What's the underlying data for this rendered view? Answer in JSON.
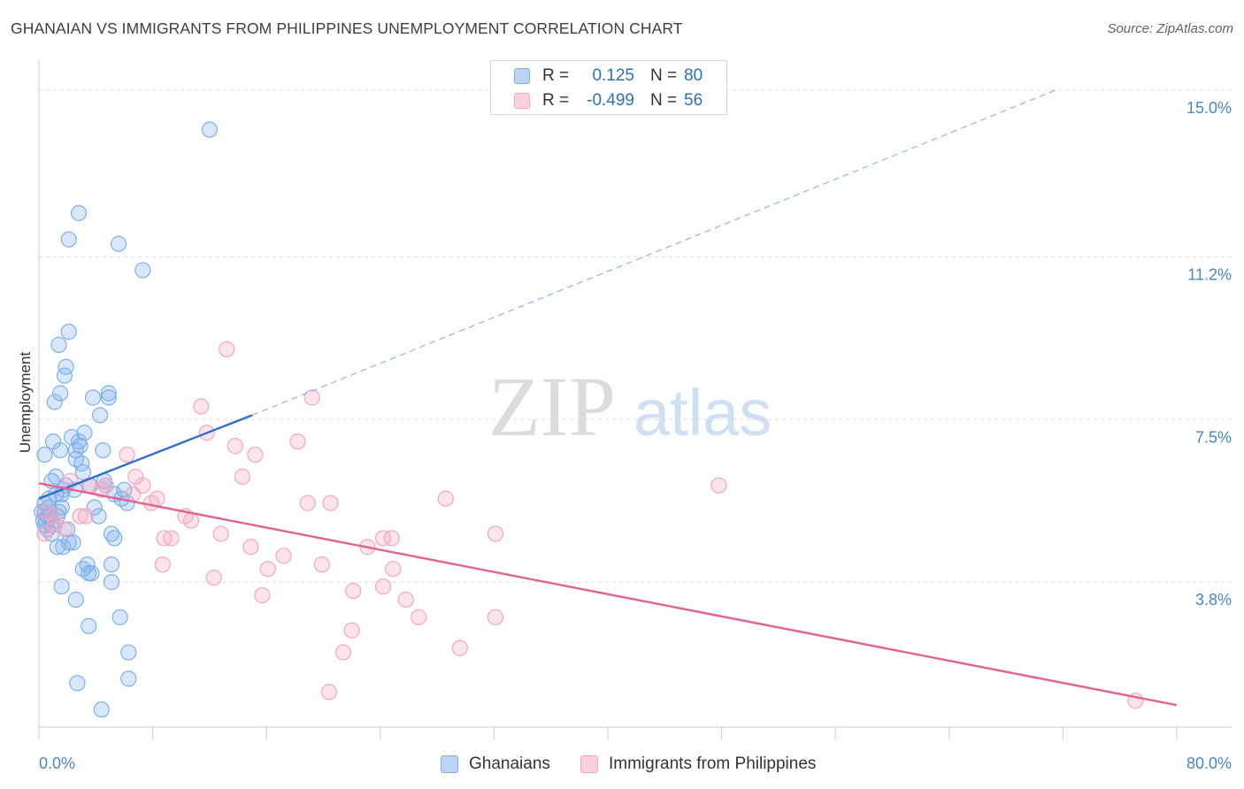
{
  "header": {
    "title": "GHANAIAN VS IMMIGRANTS FROM PHILIPPINES UNEMPLOYMENT CORRELATION CHART",
    "source": "Source: ZipAtlas.com"
  },
  "watermark": {
    "zip": "ZIP",
    "atlas": "atlas"
  },
  "legend": {
    "rows": [
      {
        "r_label": "R =",
        "r_value": "0.125",
        "n_label": "N =",
        "n_value": "80",
        "color": "#7fb0ea"
      },
      {
        "r_label": "R =",
        "r_value": "-0.499",
        "n_label": "N =",
        "n_value": "56",
        "color": "#f4a6bf"
      }
    ]
  },
  "bottom_legend": {
    "items": [
      {
        "label": "Ghanaians",
        "color": "#7fb0ea"
      },
      {
        "label": "Immigrants from Philippines",
        "color": "#f4a6bf"
      }
    ]
  },
  "chart_data": {
    "type": "scatter",
    "title": "GHANAIAN VS IMMIGRANTS FROM PHILIPPINES UNEMPLOYMENT CORRELATION CHART",
    "xlabel": "",
    "ylabel": "Unemployment",
    "xlim": [
      0,
      80
    ],
    "ylim": [
      0.5,
      15.6
    ],
    "x_tick_labels": [
      "0.0%",
      "80.0%"
    ],
    "y_ticks": [
      3.8,
      7.5,
      11.2,
      15.0
    ],
    "y_tick_labels": [
      "3.8%",
      "7.5%",
      "11.2%",
      "15.0%"
    ],
    "grid": true,
    "legend_position": "top-center",
    "series": [
      {
        "name": "Ghanaians",
        "color": "#7fb0ea",
        "line_color": "#2f6fcf",
        "trend": {
          "x0": 0,
          "y0": 5.7,
          "x1": 15.0,
          "y1": 7.6,
          "dash_to_x": 71.5,
          "dash_to_y": 15.0
        },
        "points": [
          [
            12.0,
            14.1
          ],
          [
            2.8,
            12.2
          ],
          [
            2.1,
            11.6
          ],
          [
            5.6,
            11.5
          ],
          [
            7.3,
            10.9
          ],
          [
            2.1,
            9.5
          ],
          [
            1.4,
            9.2
          ],
          [
            1.9,
            8.7
          ],
          [
            1.8,
            8.5
          ],
          [
            4.9,
            8.1
          ],
          [
            1.5,
            8.1
          ],
          [
            4.9,
            8.0
          ],
          [
            3.8,
            8.0
          ],
          [
            1.1,
            7.9
          ],
          [
            4.3,
            7.6
          ],
          [
            3.2,
            7.2
          ],
          [
            2.3,
            7.1
          ],
          [
            2.8,
            7.0
          ],
          [
            1.0,
            7.0
          ],
          [
            2.9,
            6.9
          ],
          [
            1.5,
            6.8
          ],
          [
            4.5,
            6.8
          ],
          [
            2.6,
            6.8
          ],
          [
            0.4,
            6.7
          ],
          [
            2.6,
            6.6
          ],
          [
            3.0,
            6.5
          ],
          [
            3.1,
            6.3
          ],
          [
            1.2,
            6.2
          ],
          [
            4.6,
            6.1
          ],
          [
            0.9,
            6.1
          ],
          [
            3.6,
            6.0
          ],
          [
            2.5,
            5.9
          ],
          [
            1.6,
            5.8
          ],
          [
            1.2,
            5.8
          ],
          [
            5.3,
            5.8
          ],
          [
            5.8,
            5.7
          ],
          [
            6.2,
            5.6
          ],
          [
            0.4,
            5.6
          ],
          [
            0.7,
            5.5
          ],
          [
            1.6,
            5.5
          ],
          [
            0.2,
            5.4
          ],
          [
            0.4,
            5.4
          ],
          [
            0.6,
            5.3
          ],
          [
            1.3,
            5.3
          ],
          [
            0.8,
            5.3
          ],
          [
            0.5,
            5.2
          ],
          [
            0.3,
            5.2
          ],
          [
            4.2,
            5.3
          ],
          [
            0.9,
            5.1
          ],
          [
            0.4,
            5.1
          ],
          [
            0.6,
            5.0
          ],
          [
            5.1,
            4.9
          ],
          [
            5.3,
            4.8
          ],
          [
            2.1,
            4.7
          ],
          [
            2.4,
            4.7
          ],
          [
            1.3,
            4.6
          ],
          [
            1.7,
            4.6
          ],
          [
            5.1,
            4.2
          ],
          [
            3.4,
            4.2
          ],
          [
            3.1,
            4.1
          ],
          [
            3.5,
            4.0
          ],
          [
            3.7,
            4.0
          ],
          [
            5.1,
            3.8
          ],
          [
            1.6,
            3.7
          ],
          [
            2.6,
            3.4
          ],
          [
            5.7,
            3.0
          ],
          [
            3.5,
            2.8
          ],
          [
            6.3,
            2.2
          ],
          [
            6.3,
            1.6
          ],
          [
            2.7,
            1.5
          ],
          [
            4.4,
            0.9
          ],
          [
            1.9,
            6.0
          ],
          [
            0.7,
            5.7
          ],
          [
            1.4,
            5.4
          ],
          [
            2.0,
            5.0
          ],
          [
            3.9,
            5.5
          ],
          [
            4.7,
            6.0
          ],
          [
            6.0,
            5.9
          ],
          [
            0.9,
            4.9
          ],
          [
            1.7,
            5.9
          ]
        ]
      },
      {
        "name": "Immigrants from Philippines",
        "color": "#f4a6bf",
        "line_color": "#e0648f",
        "trend": {
          "x0": 0,
          "y0": 6.05,
          "x1": 80,
          "y1": 1.0
        },
        "points": [
          [
            13.2,
            9.1
          ],
          [
            19.2,
            8.0
          ],
          [
            11.4,
            7.8
          ],
          [
            11.8,
            7.2
          ],
          [
            18.2,
            7.0
          ],
          [
            13.8,
            6.9
          ],
          [
            15.2,
            6.7
          ],
          [
            6.2,
            6.7
          ],
          [
            14.3,
            6.2
          ],
          [
            6.8,
            6.2
          ],
          [
            47.8,
            6.0
          ],
          [
            7.3,
            6.0
          ],
          [
            4.7,
            6.0
          ],
          [
            4.4,
            5.9
          ],
          [
            3.5,
            6.0
          ],
          [
            6.6,
            5.8
          ],
          [
            28.6,
            5.7
          ],
          [
            8.3,
            5.7
          ],
          [
            7.9,
            5.6
          ],
          [
            18.9,
            5.6
          ],
          [
            20.5,
            5.6
          ],
          [
            2.9,
            5.3
          ],
          [
            3.3,
            5.3
          ],
          [
            10.3,
            5.3
          ],
          [
            10.7,
            5.2
          ],
          [
            1.8,
            5.0
          ],
          [
            1.1,
            5.1
          ],
          [
            12.8,
            4.9
          ],
          [
            32.1,
            4.9
          ],
          [
            9.3,
            4.8
          ],
          [
            24.2,
            4.8
          ],
          [
            24.8,
            4.8
          ],
          [
            8.8,
            4.8
          ],
          [
            14.9,
            4.6
          ],
          [
            23.1,
            4.6
          ],
          [
            17.2,
            4.4
          ],
          [
            19.9,
            4.2
          ],
          [
            8.7,
            4.2
          ],
          [
            16.1,
            4.1
          ],
          [
            24.9,
            4.1
          ],
          [
            12.3,
            3.9
          ],
          [
            24.2,
            3.7
          ],
          [
            22.1,
            3.6
          ],
          [
            15.7,
            3.5
          ],
          [
            25.8,
            3.4
          ],
          [
            26.7,
            3.0
          ],
          [
            32.1,
            3.0
          ],
          [
            22.0,
            2.7
          ],
          [
            29.6,
            2.3
          ],
          [
            21.4,
            2.2
          ],
          [
            20.4,
            1.3
          ],
          [
            77.1,
            1.1
          ],
          [
            0.4,
            4.9
          ],
          [
            1.0,
            5.3
          ],
          [
            0.5,
            5.4
          ],
          [
            2.2,
            6.1
          ]
        ]
      }
    ]
  }
}
